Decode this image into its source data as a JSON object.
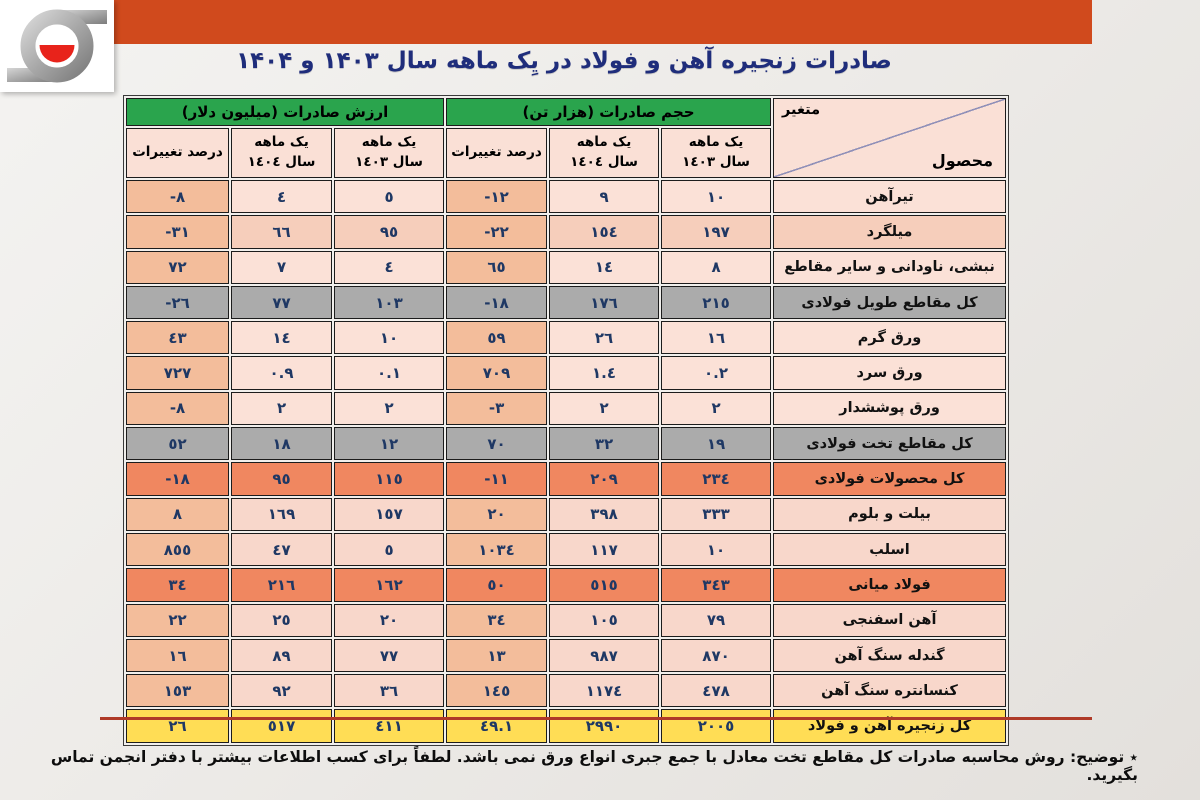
{
  "header": {
    "title": "صادرات زنجیره آهن و فولاد در یِک ماهه سال ۱۴۰۳ و ۱۴۰۴",
    "title_color": "#1F2D7B",
    "bar_color": "#D04A1D",
    "logo_icon": "swirl-logo-icon",
    "logo_accent_color": "#E8231B",
    "logo_swirl_color": "#9A9A9A"
  },
  "table": {
    "corner": {
      "top_label": "متغیر",
      "bottom_label": "محصول"
    },
    "groups": [
      {
        "id": "volume",
        "label": "حجم صادرات (هزار تن)"
      },
      {
        "id": "value",
        "label": "ارزش صادرات (میلیون دلار)"
      }
    ],
    "subheaders": [
      {
        "line1": "یک ماهه",
        "line2": "سال ١٤٠٣"
      },
      {
        "line1": "یک ماهه",
        "line2": "سال ١٤٠٤"
      },
      {
        "line1": "درصد تغییرات",
        "line2": ""
      },
      {
        "line1": "یک ماهه",
        "line2": "سال ١٤٠٣"
      },
      {
        "line1": "یک ماهه",
        "line2": "سال ١٤٠٤"
      },
      {
        "line1": "درصد تغییرات",
        "line2": ""
      }
    ],
    "rows": [
      {
        "product": "تیرآهن",
        "vol_1403": "١٠",
        "vol_1404": "٩",
        "vol_pct": "-١٢",
        "val_1403": "٥",
        "val_1404": "٤",
        "val_pct": "-٨",
        "style": "normal"
      },
      {
        "product": "میلگرد",
        "vol_1403": "١٩٧",
        "vol_1404": "١٥٤",
        "vol_pct": "-٢٢",
        "val_1403": "٩٥",
        "val_1404": "٦٦",
        "val_pct": "-٣١",
        "style": "medium"
      },
      {
        "product": "نبشی، ناودانی و سایر مقاطع",
        "vol_1403": "٨",
        "vol_1404": "١٤",
        "vol_pct": "٦٥",
        "val_1403": "٤",
        "val_1404": "٧",
        "val_pct": "٧٢",
        "style": "normal"
      },
      {
        "product": "کل مقاطع طویل فولادی",
        "vol_1403": "٢١٥",
        "vol_1404": "١٧٦",
        "vol_pct": "-١٨",
        "val_1403": "١٠٣",
        "val_1404": "٧٧",
        "val_pct": "-٢٦",
        "style": "gray"
      },
      {
        "product": "ورق گرم",
        "vol_1403": "١٦",
        "vol_1404": "٢٦",
        "vol_pct": "٥٩",
        "val_1403": "١٠",
        "val_1404": "١٤",
        "val_pct": "٤٣",
        "style": "normal"
      },
      {
        "product": "ورق سرد",
        "vol_1403": "٠.٢",
        "vol_1404": "١.٤",
        "vol_pct": "٧٠٩",
        "val_1403": "٠.١",
        "val_1404": "٠.٩",
        "val_pct": "٧٢٧",
        "style": "normal"
      },
      {
        "product": "ورق پوششدار",
        "vol_1403": "٢",
        "vol_1404": "٢",
        "vol_pct": "-٣",
        "val_1403": "٢",
        "val_1404": "٢",
        "val_pct": "-٨",
        "style": "normal"
      },
      {
        "product": "کل مقاطع تخت فولادی",
        "vol_1403": "١٩",
        "vol_1404": "٣٢",
        "vol_pct": "٧٠",
        "val_1403": "١٢",
        "val_1404": "١٨",
        "val_pct": "٥٢",
        "style": "gray"
      },
      {
        "product": "کل محصولات فولادی",
        "vol_1403": "٢٣٤",
        "vol_1404": "٢٠٩",
        "vol_pct": "-١١",
        "val_1403": "١١٥",
        "val_1404": "٩٥",
        "val_pct": "-١٨",
        "style": "salmon"
      },
      {
        "product": "بیلت و بلوم",
        "vol_1403": "٣٣٣",
        "vol_1404": "٣٩٨",
        "vol_pct": "٢٠",
        "val_1403": "١٥٧",
        "val_1404": "١٦٩",
        "val_pct": "٨",
        "style": "rose"
      },
      {
        "product": "اسلب",
        "vol_1403": "١٠",
        "vol_1404": "١١٧",
        "vol_pct": "١٠٣٤",
        "val_1403": "٥",
        "val_1404": "٤٧",
        "val_pct": "٨٥٥",
        "style": "rose"
      },
      {
        "product": "فولاد میانی",
        "vol_1403": "٣٤٣",
        "vol_1404": "٥١٥",
        "vol_pct": "٥٠",
        "val_1403": "١٦٢",
        "val_1404": "٢١٦",
        "val_pct": "٣٤",
        "style": "salmon"
      },
      {
        "product": "آهن اسفنجی",
        "vol_1403": "٧٩",
        "vol_1404": "١٠٥",
        "vol_pct": "٣٤",
        "val_1403": "٢٠",
        "val_1404": "٢٥",
        "val_pct": "٢٢",
        "style": "rose"
      },
      {
        "product": "گندله سنگ آهن",
        "vol_1403": "٨٧٠",
        "vol_1404": "٩٨٧",
        "vol_pct": "١٣",
        "val_1403": "٧٧",
        "val_1404": "٨٩",
        "val_pct": "١٦",
        "style": "rose"
      },
      {
        "product": "کنسانتره سنگ آهن",
        "vol_1403": "٤٧٨",
        "vol_1404": "١١٧٤",
        "vol_pct": "١٤٥",
        "val_1403": "٣٦",
        "val_1404": "٩٢",
        "val_pct": "١٥٣",
        "style": "rose"
      },
      {
        "product": "کل زنجیره آهن و فولاد",
        "vol_1403": "٢٠٠٥",
        "vol_1404": "٢٩٩٠",
        "vol_pct": "٤٩.١",
        "val_1403": "٤١١",
        "val_1404": "٥١٧",
        "val_pct": "٢٦",
        "style": "total"
      }
    ]
  },
  "footnote": {
    "label": "٭ توضیح:",
    "text": "روش محاسبه صادرات کل مقاطع تخت معادل با جمع جبری انواع ورق نمی باشد. لطفاً برای کسب اطلاعات بیشتر با دفتر انجمن تماس بگیرید."
  },
  "colors": {
    "header_green": "#2AA44D",
    "header_pink": "#FAE0D6",
    "gap": "#F1EFEC",
    "number_text": "#1F3864",
    "divider_red": "#AF3A28",
    "diagonal_line": "#9090B8",
    "row_styles": {
      "normal": {
        "bg": "#FBE1D7",
        "pct": "#F3BD9B"
      },
      "medium": {
        "bg": "#F6CEBB",
        "pct": "#F3BD9B"
      },
      "rose": {
        "bg": "#F8D7CB",
        "pct": "#F3BD9B"
      },
      "gray": {
        "bg": "#ABABAB",
        "pct": "#ABABAB"
      },
      "salmon": {
        "bg": "#F08760",
        "pct": "#F08760"
      },
      "total": {
        "bg": "#FFDD55",
        "pct": "#FFDD55"
      }
    }
  }
}
